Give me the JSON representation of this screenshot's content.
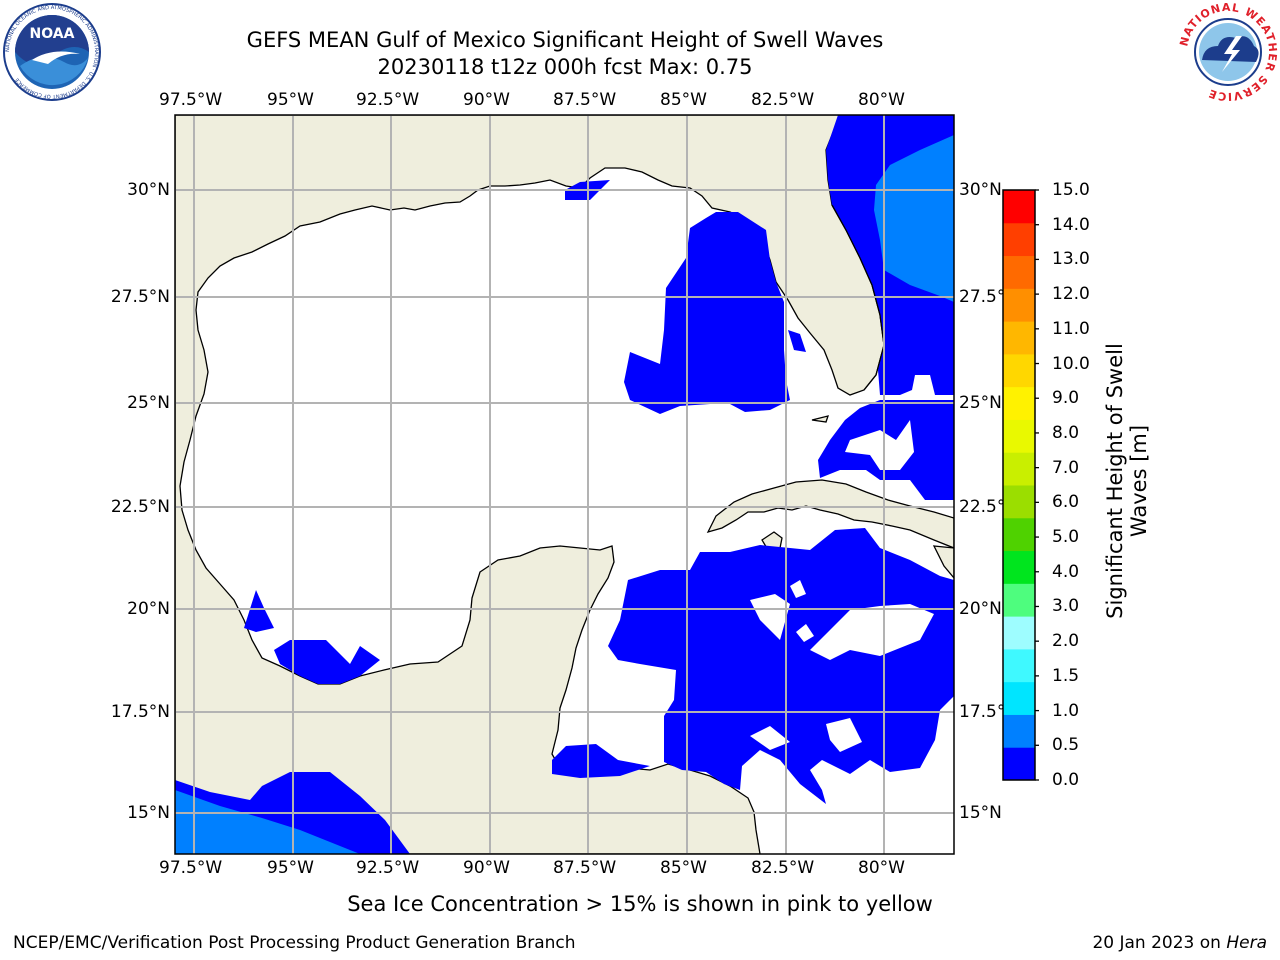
{
  "header": {
    "title_line1": "GEFS MEAN Gulf of Mexico Significant Height of Swell Waves",
    "title_line2": "20230118 t12z 000h fcst   Max: 0.75"
  },
  "logos": {
    "noaa_text": "NOAA",
    "noaa_ring_text": "NATIONAL OCEANIC AND ATMOSPHERIC ADMINISTRATION · U.S. DEPARTMENT OF COMMERCE",
    "nws_ring_text": "NATIONAL WEATHER SERVICE"
  },
  "map": {
    "lon_labels": [
      "97.5°W",
      "95°W",
      "92.5°W",
      "90°W",
      "87.5°W",
      "85°W",
      "82.5°W",
      "80°W"
    ],
    "lat_labels_left": [
      "30°N",
      "27.5°N",
      "25°N",
      "22.5°N",
      "20°N",
      "17.5°N",
      "15°N"
    ],
    "lat_labels_right": [
      "30°N",
      "27.5°N",
      "25°N",
      "22.5°N",
      "20°N",
      "17.5°N",
      "15°N"
    ],
    "land_color": "#efeedd",
    "ocean_color": "#ffffff"
  },
  "colorbar": {
    "label_line1": "Significant Height of Swell",
    "label_line2": "Waves [m]",
    "ticks": [
      "15.0",
      "14.0",
      "13.0",
      "12.0",
      "11.0",
      "10.0",
      "9.0",
      "8.0",
      "7.0",
      "6.0",
      "5.0",
      "4.0",
      "3.0",
      "2.0",
      "1.5",
      "1.0",
      "0.5",
      "0.0"
    ],
    "colors_bottom_to_top": [
      "#0000ff",
      "#0080ff",
      "#00e5ff",
      "#3ff9ff",
      "#9efdff",
      "#4efd7e",
      "#00e51e",
      "#4fd200",
      "#9bde00",
      "#c9ef00",
      "#e9f900",
      "#fff200",
      "#ffd700",
      "#ffb700",
      "#ff8f00",
      "#ff6a00",
      "#ff3f00",
      "#ff0000"
    ]
  },
  "subtitle": "Sea Ice Concentration > 15% is shown in pink to yellow",
  "footer": {
    "left": "NCEP/EMC/Verification Post Processing Product Generation Branch",
    "right_prefix": "20 Jan 2023 on ",
    "right_host": "Hera"
  }
}
